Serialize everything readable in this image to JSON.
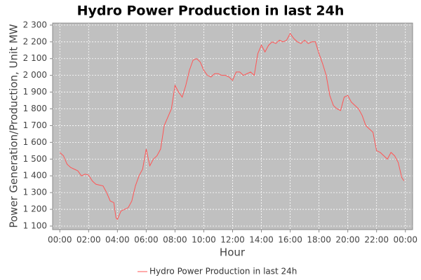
{
  "chart_data": {
    "type": "line",
    "title": "Hydro Power Production in last 24h",
    "x_label": "Hour",
    "y_label": "Power Generation/Production, Unit MW",
    "xlim": [
      -0.5,
      24.5
    ],
    "ylim": [
      1079,
      2312
    ],
    "xticks": [
      {
        "value": 0,
        "label": "00:00"
      },
      {
        "value": 2,
        "label": "02:00"
      },
      {
        "value": 4,
        "label": "04:00"
      },
      {
        "value": 6,
        "label": "06:00"
      },
      {
        "value": 8,
        "label": "08:00"
      },
      {
        "value": 10,
        "label": "10:00"
      },
      {
        "value": 12,
        "label": "12:00"
      },
      {
        "value": 14,
        "label": "14:00"
      },
      {
        "value": 16,
        "label": "16:00"
      },
      {
        "value": 18,
        "label": "18:00"
      },
      {
        "value": 20,
        "label": "20:00"
      },
      {
        "value": 22,
        "label": "22:00"
      },
      {
        "value": 24,
        "label": "00:00"
      }
    ],
    "yticks": [
      {
        "value": 1100,
        "label": "1 100"
      },
      {
        "value": 1200,
        "label": "1 200"
      },
      {
        "value": 1300,
        "label": "1 300"
      },
      {
        "value": 1400,
        "label": "1 400"
      },
      {
        "value": 1500,
        "label": "1 500"
      },
      {
        "value": 1600,
        "label": "1 600"
      },
      {
        "value": 1700,
        "label": "1 700"
      },
      {
        "value": 1800,
        "label": "1 800"
      },
      {
        "value": 1900,
        "label": "1 900"
      },
      {
        "value": 2000,
        "label": "2 000"
      },
      {
        "value": 2100,
        "label": "2 100"
      },
      {
        "value": 2200,
        "label": "2 200"
      },
      {
        "value": 2300,
        "label": "2 300"
      }
    ],
    "grid": true,
    "legend": "bottom",
    "x": [
      0,
      0.25,
      0.5,
      0.75,
      1,
      1.25,
      1.5,
      1.75,
      2,
      2.25,
      2.5,
      2.75,
      3,
      3.25,
      3.5,
      3.75,
      3.9,
      4,
      4.25,
      4.5,
      4.75,
      5,
      5.25,
      5.5,
      5.75,
      6,
      6.25,
      6.5,
      6.75,
      7,
      7.25,
      7.5,
      7.75,
      8,
      8.25,
      8.5,
      8.75,
      9,
      9.25,
      9.5,
      9.75,
      10,
      10.25,
      10.5,
      10.75,
      11,
      11.25,
      11.5,
      11.75,
      12,
      12.25,
      12.5,
      12.75,
      13,
      13.25,
      13.5,
      13.75,
      14,
      14.25,
      14.5,
      14.75,
      15,
      15.25,
      15.5,
      15.75,
      16,
      16.25,
      16.5,
      16.75,
      17,
      17.25,
      17.5,
      17.75,
      18,
      18.25,
      18.5,
      18.75,
      19,
      19.25,
      19.5,
      19.75,
      20,
      20.25,
      20.5,
      20.75,
      21,
      21.25,
      21.5,
      21.75,
      22,
      22.25,
      22.5,
      22.75,
      23,
      23.25,
      23.5,
      23.75,
      23.9
    ],
    "series": [
      {
        "name": "Hydro Power Production in last 24h",
        "color": "#ff5555",
        "values": [
          1540,
          1520,
          1470,
          1450,
          1440,
          1430,
          1400,
          1410,
          1405,
          1370,
          1350,
          1345,
          1340,
          1300,
          1250,
          1240,
          1150,
          1140,
          1190,
          1200,
          1210,
          1250,
          1340,
          1400,
          1440,
          1560,
          1460,
          1500,
          1520,
          1560,
          1700,
          1750,
          1800,
          1940,
          1900,
          1870,
          1940,
          2030,
          2090,
          2100,
          2080,
          2030,
          2000,
          1990,
          2010,
          2010,
          2000,
          2000,
          1990,
          1970,
          2020,
          2020,
          2000,
          2010,
          2020,
          2000,
          2130,
          2180,
          2140,
          2180,
          2200,
          2190,
          2210,
          2200,
          2210,
          2250,
          2220,
          2200,
          2190,
          2210,
          2190,
          2200,
          2200,
          2130,
          2070,
          2000,
          1880,
          1820,
          1800,
          1790,
          1870,
          1880,
          1840,
          1820,
          1800,
          1760,
          1700,
          1680,
          1660,
          1550,
          1540,
          1520,
          1500,
          1540,
          1520,
          1480,
          1390,
          1370
        ]
      }
    ]
  }
}
